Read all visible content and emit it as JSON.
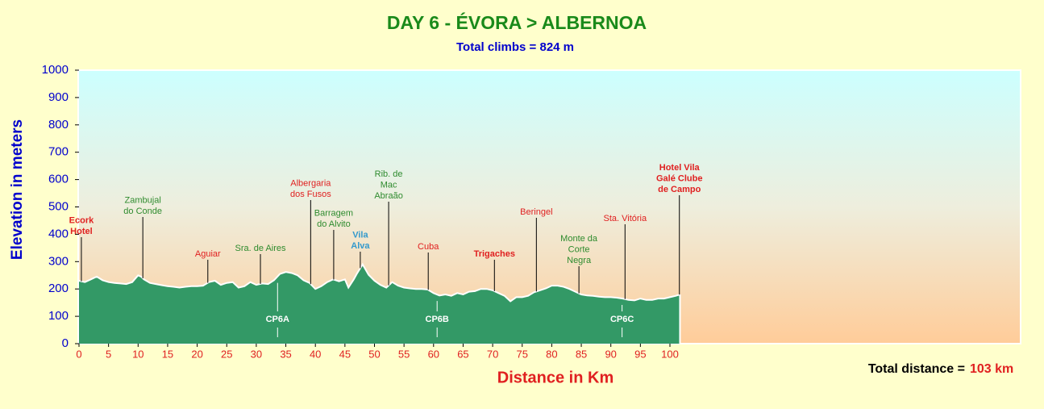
{
  "chart_data": {
    "type": "area",
    "title": "DAY 6 - ÉVORA > ALBERNOA",
    "subtitle": "Total climbs = 824 m",
    "x_label": "Distance in Km",
    "y_label": "Elevation in meters",
    "total_distance": {
      "label": "Total distance =",
      "value": "103 km"
    },
    "color": "#339966",
    "line_color": "#ffffff",
    "x": [
      0,
      1,
      2,
      3,
      4,
      5,
      6,
      7,
      8,
      9,
      10,
      10.5,
      11,
      12,
      13,
      14,
      15,
      16,
      17,
      18,
      19,
      20,
      21,
      22,
      23,
      24,
      25,
      26,
      27,
      28,
      29,
      30,
      31,
      32,
      33,
      34,
      35,
      36,
      37,
      38,
      39,
      40,
      41,
      42,
      43,
      44,
      45,
      45.6,
      46.5,
      47,
      48,
      49,
      50,
      51,
      52,
      53,
      54,
      55,
      56,
      57,
      58,
      59,
      60,
      61,
      62,
      63,
      64,
      65,
      66,
      67,
      68,
      69,
      70,
      71,
      72,
      73,
      74,
      75,
      76,
      77,
      78,
      79,
      80,
      81,
      82,
      83,
      84,
      85,
      86,
      87,
      88,
      89,
      90,
      91,
      92,
      93,
      94,
      95,
      96,
      97,
      98,
      99,
      100,
      101,
      101.7
    ],
    "values": [
      230,
      225,
      235,
      245,
      232,
      225,
      222,
      220,
      218,
      225,
      250,
      245,
      235,
      222,
      218,
      214,
      210,
      208,
      205,
      208,
      210,
      210,
      212,
      225,
      230,
      215,
      222,
      225,
      205,
      210,
      225,
      215,
      220,
      218,
      232,
      255,
      262,
      258,
      250,
      232,
      222,
      200,
      210,
      225,
      235,
      228,
      235,
      205,
      235,
      255,
      290,
      252,
      230,
      215,
      205,
      225,
      212,
      205,
      202,
      200,
      200,
      198,
      185,
      176,
      180,
      175,
      185,
      180,
      190,
      192,
      200,
      200,
      195,
      185,
      175,
      155,
      170,
      170,
      175,
      188,
      195,
      202,
      212,
      212,
      208,
      200,
      190,
      180,
      176,
      175,
      172,
      170,
      170,
      168,
      165,
      160,
      158,
      165,
      160,
      160,
      165,
      165,
      170,
      175,
      180
    ],
    "xlim": [
      0,
      159.2
    ],
    "ylim": [
      0,
      1000
    ],
    "xticks": [
      0,
      5,
      10,
      15,
      20,
      25,
      30,
      35,
      40,
      45,
      50,
      55,
      60,
      65,
      70,
      75,
      80,
      85,
      90,
      95,
      100
    ],
    "yticks": [
      0,
      100,
      200,
      300,
      400,
      500,
      600,
      700,
      800,
      900,
      1000
    ],
    "waypoints": [
      {
        "lines": [
          "Ecork",
          "Hotel"
        ],
        "km": 0.4,
        "color": "#e02020",
        "bold": true
      },
      {
        "lines": [
          "Zambujal",
          "do Conde"
        ],
        "km": 10.8,
        "color": "#2e8b2e",
        "bold": false
      },
      {
        "lines": [
          "Aguiar"
        ],
        "km": 21.8,
        "color": "#e02020",
        "bold": false
      },
      {
        "lines": [
          "Sra. de Aires"
        ],
        "km": 30.7,
        "color": "#2e8b2e",
        "bold": false
      },
      {
        "lines": [
          "Albergaria",
          "dos Fusos"
        ],
        "km": 39.2,
        "color": "#e02020",
        "bold": false
      },
      {
        "lines": [
          "Barragem",
          "do Alvito"
        ],
        "km": 43.1,
        "color": "#2e8b2e",
        "bold": false
      },
      {
        "lines": [
          "Vila",
          "Alva"
        ],
        "km": 47.6,
        "color": "#3399cc",
        "bold": true
      },
      {
        "lines": [
          "Rib. de",
          "Mac",
          "Abraão"
        ],
        "km": 52.4,
        "color": "#2e8b2e",
        "bold": false
      },
      {
        "lines": [
          "Cuba"
        ],
        "km": 59.1,
        "color": "#e02020",
        "bold": false
      },
      {
        "lines": [
          "Trigaches"
        ],
        "km": 70.3,
        "color": "#e02020",
        "bold": true
      },
      {
        "lines": [
          "Beringel"
        ],
        "km": 77.4,
        "color": "#e02020",
        "bold": false
      },
      {
        "lines": [
          "Monte da",
          "Corte",
          "Negra"
        ],
        "km": 84.6,
        "color": "#2e8b2e",
        "bold": false
      },
      {
        "lines": [
          "Sta. Vitória"
        ],
        "km": 92.4,
        "color": "#e02020",
        "bold": false
      },
      {
        "lines": [
          "Hotel Vila",
          "Galé Clube",
          "de Campo"
        ],
        "km": 101.6,
        "color": "#e02020",
        "bold": true
      }
    ],
    "checkpoints": [
      {
        "label": "CP6A",
        "km": 33.6
      },
      {
        "label": "CP6B",
        "km": 60.6
      },
      {
        "label": "CP6C",
        "km": 91.9
      }
    ]
  }
}
